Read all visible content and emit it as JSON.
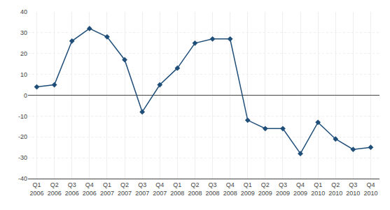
{
  "chart_data": {
    "type": "line",
    "categories": [
      "Q1\n2006",
      "Q2\n2006",
      "Q3\n2006",
      "Q4\n2006",
      "Q1\n2007",
      "Q2\n2007",
      "Q3\n2007",
      "Q4\n2007",
      "Q1\n2008",
      "Q2\n2008",
      "Q3\n2008",
      "Q4\n2008",
      "Q1\n2009",
      "Q2\n2009",
      "Q3\n2009",
      "Q4\n2009",
      "Q1\n2010",
      "Q2\n2010",
      "Q3\n2010",
      "Q4\n2010"
    ],
    "values": [
      4,
      5,
      26,
      32,
      28,
      17,
      -8,
      5,
      13,
      25,
      27,
      27,
      -12,
      -16,
      -16,
      -28,
      -13,
      -21,
      -26,
      -25
    ],
    "color": "#1F4E79",
    "marker": "diamond",
    "ylim": [
      -40,
      40
    ],
    "yticks": [
      -40,
      -30,
      -20,
      -10,
      0,
      10,
      20,
      30,
      40
    ],
    "grid": true
  }
}
